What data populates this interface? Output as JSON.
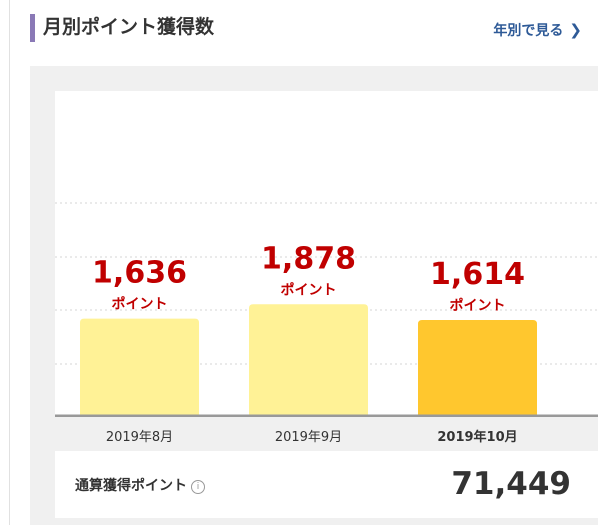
{
  "header": {
    "title": "月別ポイント獲得数",
    "yearly_link": "年別で見る",
    "chevron_icon": "chevron-right-icon"
  },
  "chart_data": {
    "type": "bar",
    "categories": [
      "2019年8月",
      "2019年9月",
      "2019年10月"
    ],
    "values": [
      1636,
      1878,
      1614
    ],
    "value_labels": [
      "1,636",
      "1,878",
      "1,614"
    ],
    "unit_label": "ポイント",
    "selected_index": 2,
    "colors": {
      "bar": "#fff296",
      "selected_bar": "#ffc72e",
      "value": "#c00000",
      "unit": "#c00000"
    },
    "grid": true
  },
  "total": {
    "label": "通算獲得ポイント",
    "info_icon": "info-icon",
    "value": "71,449"
  }
}
